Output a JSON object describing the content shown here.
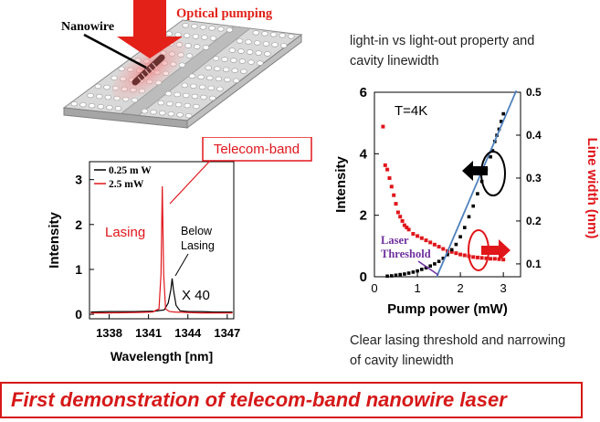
{
  "diagram": {
    "nanowire_label": "Nanowire",
    "pump_label": "Optical pumping",
    "colors": {
      "pump_arrow": "#e32119",
      "slab": "#d6d6d6",
      "holes": "#ffffff",
      "glow": "#f2a0a0"
    }
  },
  "spectrum": {
    "callout": "Telecom-band",
    "lasing_label": "Lasing",
    "below_label_1": "Below",
    "below_label_2": "Lasing",
    "factor_label": "X 40",
    "chart_data": {
      "type": "line",
      "xlabel": "Wavelength [nm]",
      "ylabel": "Intensity",
      "xlim": [
        1336.5,
        1347.5
      ],
      "ylim": [
        -0.1,
        3.4
      ],
      "xticks": [
        1338,
        1341,
        1344,
        1347
      ],
      "yticks": [
        0,
        1,
        2,
        3
      ],
      "legend_position": "top-left",
      "series": [
        {
          "name": "0.25 m W",
          "color": "#000000",
          "x": [
            1336.6,
            1338,
            1340,
            1341.5,
            1342.2,
            1342.5,
            1342.7,
            1342.8,
            1342.9,
            1343.1,
            1343.4,
            1344,
            1345,
            1346,
            1347.4
          ],
          "y": [
            0.05,
            0.06,
            0.06,
            0.07,
            0.1,
            0.25,
            0.55,
            0.8,
            0.55,
            0.2,
            0.08,
            0.06,
            0.06,
            0.05,
            0.05
          ]
        },
        {
          "name": "2.5 mW",
          "color": "#e0161b",
          "x": [
            1336.6,
            1338,
            1340,
            1341.3,
            1341.8,
            1341.95,
            1342.05,
            1342.15,
            1342.3,
            1342.6,
            1343,
            1344,
            1345,
            1346,
            1347.4
          ],
          "y": [
            0.03,
            0.03,
            0.04,
            0.05,
            0.12,
            0.9,
            2.85,
            0.9,
            0.12,
            0.06,
            0.05,
            0.04,
            0.03,
            0.03,
            0.03
          ]
        }
      ]
    }
  },
  "lightio": {
    "temperature_label": "T=4K",
    "threshold_label_1": "Laser",
    "threshold_label_2": "Threshold",
    "chart_data": {
      "type": "scatter",
      "xlabel": "Pump power (mW)",
      "ylabel": "Intensity",
      "y2label": "Line width (nm)",
      "xlim": [
        0,
        3.4
      ],
      "ylim": [
        0,
        6
      ],
      "y2lim": [
        0.07,
        0.5
      ],
      "xticks": [
        0,
        1,
        2,
        3
      ],
      "yticks": [
        0,
        2,
        4,
        6
      ],
      "y2ticks": [
        0.1,
        0.2,
        0.3,
        0.4,
        0.5
      ],
      "series": [
        {
          "name": "Intensity",
          "axis": "left",
          "color": "#000000",
          "x": [
            0.3,
            0.4,
            0.5,
            0.6,
            0.7,
            0.8,
            0.9,
            1.0,
            1.1,
            1.2,
            1.3,
            1.4,
            1.5,
            1.6,
            1.7,
            1.8,
            1.9,
            2.0,
            2.1,
            2.2,
            2.3,
            2.4,
            2.5,
            2.6,
            2.7,
            2.75,
            2.8,
            2.85,
            2.9,
            2.95,
            3.0
          ],
          "y": [
            0.02,
            0.03,
            0.05,
            0.07,
            0.09,
            0.12,
            0.15,
            0.19,
            0.24,
            0.29,
            0.35,
            0.42,
            0.5,
            0.6,
            0.72,
            0.88,
            1.05,
            1.3,
            1.6,
            1.95,
            2.3,
            2.7,
            3.1,
            3.5,
            3.9,
            4.1,
            4.4,
            4.6,
            4.8,
            5.05,
            5.3
          ]
        },
        {
          "name": "Line width",
          "axis": "right",
          "color": "#e0161b",
          "x": [
            0.2,
            0.25,
            0.3,
            0.35,
            0.4,
            0.45,
            0.5,
            0.55,
            0.6,
            0.65,
            0.7,
            0.75,
            0.8,
            0.9,
            1.0,
            1.1,
            1.2,
            1.3,
            1.4,
            1.5,
            1.6,
            1.7,
            1.8,
            1.9,
            2.0,
            2.1,
            2.2,
            2.3,
            2.4,
            2.5,
            2.6,
            2.7,
            2.8,
            2.9,
            3.0
          ],
          "y": [
            0.42,
            0.33,
            0.32,
            0.3,
            0.28,
            0.26,
            0.24,
            0.22,
            0.21,
            0.2,
            0.19,
            0.185,
            0.18,
            0.17,
            0.165,
            0.16,
            0.155,
            0.15,
            0.145,
            0.14,
            0.135,
            0.13,
            0.128,
            0.125,
            0.122,
            0.12,
            0.118,
            0.116,
            0.115,
            0.114,
            0.113,
            0.112,
            0.112,
            0.111,
            0.11
          ]
        }
      ],
      "fit_line": {
        "color": "#4f81bd",
        "x": [
          1.45,
          3.3
        ],
        "y": [
          0,
          6.05
        ]
      }
    }
  },
  "notes": {
    "top_1": "light-in vs light-out property and",
    "top_2": "cavity linewidth",
    "bottom_1": "Clear lasing threshold and narrowing",
    "bottom_2": "of cavity linewidth"
  },
  "banner": {
    "text": "First demonstration of telecom-band nanowire laser",
    "color": "#d61818"
  }
}
